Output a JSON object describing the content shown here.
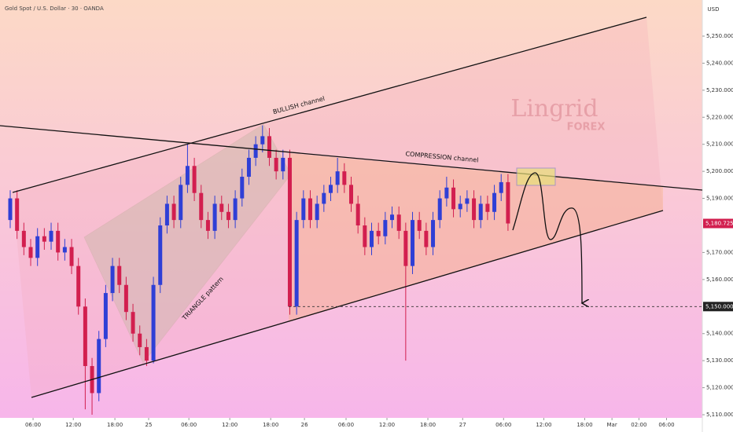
{
  "chart_data": {
    "type": "candlestick",
    "title": "Gold Spot / U.S. Dollar · 30 · OANDA",
    "currency": "USD",
    "up_color": "#2f3fd6",
    "down_color": "#d21f4f",
    "xlim": [
      0,
      206
    ],
    "xticks": [
      {
        "value": 9.7,
        "label": "06:00"
      },
      {
        "value": 21.5,
        "label": "12:00"
      },
      {
        "value": 33.7,
        "label": "18:00"
      },
      {
        "value": 43.6,
        "label": "25"
      },
      {
        "value": 55.4,
        "label": "06:00"
      },
      {
        "value": 67.4,
        "label": "12:00"
      },
      {
        "value": 79.4,
        "label": "18:00"
      },
      {
        "value": 89.3,
        "label": "26"
      },
      {
        "value": 101.5,
        "label": "06:00"
      },
      {
        "value": 113.5,
        "label": "12:00"
      },
      {
        "value": 125.5,
        "label": "18:00"
      },
      {
        "value": 135.7,
        "label": "27"
      },
      {
        "value": 147.7,
        "label": "06:00"
      },
      {
        "value": 159.5,
        "label": "12:00"
      },
      {
        "value": 171.5,
        "label": "18:00"
      },
      {
        "value": 179.5,
        "label": "Mar"
      },
      {
        "value": 187.4,
        "label": "02:00"
      },
      {
        "value": 195.5,
        "label": "06:00"
      }
    ],
    "ylim": [
      5108.84,
      5263.36
    ],
    "yticks": [
      {
        "value": 5110,
        "label": "5,110.000"
      },
      {
        "value": 5120,
        "label": "5,120.000"
      },
      {
        "value": 5130,
        "label": "5,130.000"
      },
      {
        "value": 5140,
        "label": "5,140.000"
      },
      {
        "value": 5160,
        "label": "5,160.000"
      },
      {
        "value": 5170,
        "label": "5,170.000"
      },
      {
        "value": 5190,
        "label": "5,190.000"
      },
      {
        "value": 5200,
        "label": "5,200.000"
      },
      {
        "value": 5210,
        "label": "5,210.000"
      },
      {
        "value": 5220,
        "label": "5,220.000"
      },
      {
        "value": 5230,
        "label": "5,230.000"
      },
      {
        "value": 5240,
        "label": "5,240.000"
      },
      {
        "value": 5250,
        "label": "5,250.000"
      }
    ],
    "last_price": {
      "value": 5180.725,
      "label": "5,180.725"
    },
    "target_level": {
      "value": 5150,
      "label": "5,150.000"
    },
    "x": [
      3,
      5,
      7,
      9,
      11,
      13,
      15,
      17,
      19,
      21,
      23,
      25,
      27,
      29,
      31,
      33,
      35,
      37,
      39,
      41,
      43,
      45,
      47,
      49,
      51,
      53,
      55,
      57,
      59,
      61,
      63,
      65,
      67,
      69,
      71,
      73,
      75,
      77,
      79,
      81,
      83,
      85,
      87,
      89,
      91,
      93,
      95,
      97,
      99,
      101,
      103,
      105,
      107,
      109,
      111,
      113,
      115,
      117,
      119,
      121,
      123,
      125,
      127,
      129,
      131,
      133,
      135,
      137,
      139,
      141,
      143,
      145,
      147,
      149
    ],
    "open": [
      5182,
      5190,
      5178,
      5172,
      5168,
      5176,
      5174,
      5178,
      5170,
      5172,
      5165,
      5150,
      5128,
      5118,
      5138,
      5155,
      5165,
      5158,
      5148,
      5140,
      5135,
      5130,
      5158,
      5180,
      5188,
      5182,
      5195,
      5202,
      5192,
      5182,
      5178,
      5188,
      5185,
      5182,
      5190,
      5198,
      5205,
      5210,
      5213,
      5205,
      5200,
      5205,
      5150,
      5182,
      5190,
      5182,
      5188,
      5192,
      5195,
      5200,
      5195,
      5188,
      5180,
      5172,
      5178,
      5176,
      5182,
      5184,
      5178,
      5165,
      5182,
      5178,
      5172,
      5182,
      5190,
      5194,
      5186,
      5188,
      5190,
      5182,
      5188,
      5185,
      5192,
      5196
    ],
    "high": [
      5193,
      5193,
      5181,
      5175,
      5179,
      5179,
      5181,
      5181,
      5175,
      5175,
      5168,
      5153,
      5131,
      5141,
      5158,
      5168,
      5168,
      5161,
      5151,
      5143,
      5138,
      5161,
      5183,
      5191,
      5191,
      5198,
      5210,
      5205,
      5195,
      5185,
      5191,
      5191,
      5188,
      5193,
      5201,
      5208,
      5213,
      5217,
      5216,
      5208,
      5208,
      5208,
      5185,
      5193,
      5193,
      5191,
      5195,
      5198,
      5205,
      5203,
      5198,
      5191,
      5183,
      5181,
      5181,
      5185,
      5187,
      5187,
      5181,
      5185,
      5185,
      5181,
      5185,
      5193,
      5198,
      5197,
      5191,
      5193,
      5193,
      5191,
      5191,
      5195,
      5199,
      5199
    ],
    "low": [
      5179,
      5175,
      5169,
      5165,
      5165,
      5171,
      5171,
      5167,
      5167,
      5162,
      5147,
      5112,
      5110,
      5115,
      5135,
      5152,
      5155,
      5145,
      5137,
      5132,
      5128,
      5129,
      5155,
      5177,
      5179,
      5179,
      5192,
      5189,
      5179,
      5175,
      5175,
      5182,
      5179,
      5179,
      5187,
      5195,
      5202,
      5207,
      5202,
      5197,
      5197,
      5147,
      5147,
      5179,
      5179,
      5179,
      5185,
      5189,
      5192,
      5192,
      5185,
      5177,
      5169,
      5169,
      5173,
      5173,
      5179,
      5175,
      5130,
      5162,
      5175,
      5169,
      5169,
      5179,
      5187,
      5183,
      5183,
      5185,
      5179,
      5179,
      5182,
      5182,
      5189,
      5178
    ],
    "close": [
      5190,
      5178,
      5172,
      5168,
      5176,
      5174,
      5178,
      5170,
      5172,
      5165,
      5150,
      5128,
      5118,
      5138,
      5155,
      5165,
      5158,
      5148,
      5140,
      5135,
      5130,
      5158,
      5180,
      5188,
      5182,
      5195,
      5202,
      5192,
      5182,
      5178,
      5188,
      5185,
      5182,
      5190,
      5198,
      5205,
      5210,
      5213,
      5205,
      5200,
      5205,
      5150,
      5182,
      5190,
      5182,
      5188,
      5192,
      5195,
      5200,
      5195,
      5188,
      5180,
      5172,
      5178,
      5176,
      5182,
      5184,
      5178,
      5165,
      5182,
      5178,
      5172,
      5182,
      5190,
      5194,
      5186,
      5188,
      5190,
      5182,
      5188,
      5185,
      5192,
      5196,
      5180.725
    ],
    "annotations": {
      "bullish": "BULLISH channel",
      "compression": "COMPRESSION channel",
      "triangle": "TRIANGLE pattern"
    },
    "watermark": {
      "brand": "Lingrid",
      "sub": "FOREX"
    }
  }
}
